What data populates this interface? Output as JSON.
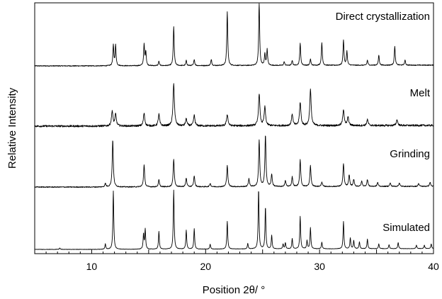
{
  "chart_data": {
    "type": "line",
    "xlabel": "Position 2θ/ °",
    "ylabel": "Relative Intensity",
    "xlim": [
      5,
      40
    ],
    "x_ticks": [
      10,
      20,
      30,
      40
    ],
    "x_tick_labels": [
      "10",
      "20",
      "30",
      "40"
    ],
    "y_ticks_labeled": false,
    "grid": false,
    "series": [
      {
        "name": "Direct crystallization",
        "peaks": [
          [
            11.9,
            0.32
          ],
          [
            12.1,
            0.32
          ],
          [
            14.6,
            0.33
          ],
          [
            14.75,
            0.22
          ],
          [
            15.9,
            0.07
          ],
          [
            17.2,
            0.61
          ],
          [
            18.3,
            0.08
          ],
          [
            19.0,
            0.1
          ],
          [
            20.5,
            0.1
          ],
          [
            21.9,
            0.85
          ],
          [
            24.7,
            1.0
          ],
          [
            25.2,
            0.18
          ],
          [
            25.4,
            0.25
          ],
          [
            26.9,
            0.06
          ],
          [
            27.6,
            0.08
          ],
          [
            28.3,
            0.35
          ],
          [
            29.2,
            0.1
          ],
          [
            30.2,
            0.36
          ],
          [
            32.1,
            0.4
          ],
          [
            32.4,
            0.22
          ],
          [
            34.2,
            0.08
          ],
          [
            35.2,
            0.16
          ],
          [
            36.6,
            0.3
          ],
          [
            37.5,
            0.08
          ]
        ]
      },
      {
        "name": "Melt",
        "peaks": [
          [
            11.8,
            0.26
          ],
          [
            12.1,
            0.2
          ],
          [
            14.6,
            0.22
          ],
          [
            15.9,
            0.2
          ],
          [
            17.2,
            0.72
          ],
          [
            18.3,
            0.12
          ],
          [
            19.0,
            0.18
          ],
          [
            21.9,
            0.2
          ],
          [
            24.7,
            0.55
          ],
          [
            25.2,
            0.32
          ],
          [
            27.6,
            0.2
          ],
          [
            28.3,
            0.4
          ],
          [
            29.2,
            0.62
          ],
          [
            32.1,
            0.28
          ],
          [
            32.5,
            0.14
          ],
          [
            34.2,
            0.1
          ],
          [
            36.8,
            0.1
          ]
        ]
      },
      {
        "name": "Grinding",
        "peaks": [
          [
            11.2,
            0.06
          ],
          [
            11.85,
            0.81
          ],
          [
            14.6,
            0.38
          ],
          [
            15.9,
            0.12
          ],
          [
            17.2,
            0.48
          ],
          [
            18.3,
            0.15
          ],
          [
            19.0,
            0.19
          ],
          [
            20.4,
            0.06
          ],
          [
            21.9,
            0.37
          ],
          [
            23.8,
            0.14
          ],
          [
            24.7,
            0.8
          ],
          [
            25.25,
            0.88
          ],
          [
            25.8,
            0.21
          ],
          [
            27.0,
            0.1
          ],
          [
            27.6,
            0.17
          ],
          [
            28.3,
            0.46
          ],
          [
            29.2,
            0.36
          ],
          [
            30.2,
            0.08
          ],
          [
            32.1,
            0.39
          ],
          [
            32.6,
            0.2
          ],
          [
            33.0,
            0.12
          ],
          [
            33.7,
            0.09
          ],
          [
            34.2,
            0.12
          ],
          [
            35.1,
            0.07
          ],
          [
            36.2,
            0.06
          ],
          [
            37.0,
            0.06
          ],
          [
            38.7,
            0.05
          ],
          [
            39.7,
            0.07
          ]
        ]
      },
      {
        "name": "Simulated",
        "peaks": [
          [
            7.2,
            0.02
          ],
          [
            11.2,
            0.08
          ],
          [
            11.9,
            0.86
          ],
          [
            14.55,
            0.22
          ],
          [
            14.7,
            0.29
          ],
          [
            15.9,
            0.26
          ],
          [
            17.2,
            0.87
          ],
          [
            18.3,
            0.28
          ],
          [
            19.0,
            0.3
          ],
          [
            20.4,
            0.07
          ],
          [
            21.9,
            0.41
          ],
          [
            23.7,
            0.08
          ],
          [
            24.65,
            0.88
          ],
          [
            25.25,
            0.62
          ],
          [
            25.8,
            0.2
          ],
          [
            26.8,
            0.07
          ],
          [
            27.0,
            0.09
          ],
          [
            27.6,
            0.15
          ],
          [
            28.3,
            0.48
          ],
          [
            28.9,
            0.12
          ],
          [
            29.2,
            0.31
          ],
          [
            30.2,
            0.1
          ],
          [
            32.1,
            0.4
          ],
          [
            32.7,
            0.16
          ],
          [
            33.0,
            0.12
          ],
          [
            33.5,
            0.1
          ],
          [
            34.2,
            0.14
          ],
          [
            35.2,
            0.07
          ],
          [
            36.1,
            0.06
          ],
          [
            36.9,
            0.09
          ],
          [
            38.5,
            0.05
          ],
          [
            39.2,
            0.05
          ],
          [
            39.8,
            0.07
          ]
        ]
      }
    ]
  }
}
